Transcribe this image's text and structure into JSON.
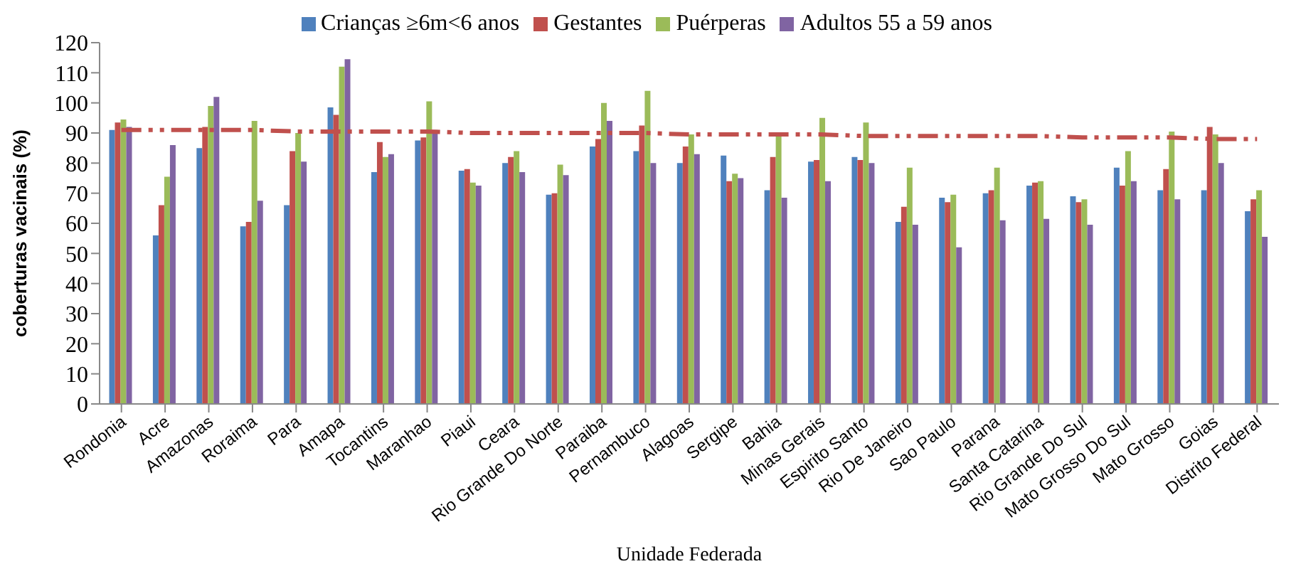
{
  "chart_data": {
    "type": "bar",
    "xlabel": "Unidade Federada",
    "ylabel": "coberturas vacinais  (%)",
    "categories": [
      "Rondonia",
      "Acre",
      "Amazonas",
      "Roraima",
      "Para",
      "Amapa",
      "Tocantins",
      "Maranhao",
      "Piaui",
      "Ceara",
      "Rio Grande Do Norte",
      "Paraiba",
      "Pernambuco",
      "Alagoas",
      "Sergipe",
      "Bahia",
      "Minas Gerais",
      "Espirito Santo",
      "Rio De Janeiro",
      "Sao Paulo",
      "Parana",
      "Santa Catarina",
      "Rio Grande Do Sul",
      "Mato Grosso Do Sul",
      "Mato Grosso",
      "Goias",
      "Distrito Federal"
    ],
    "series": [
      {
        "name": "Crianças ≥6m<6 anos",
        "color": "#4f81bd",
        "values": [
          91,
          56,
          85,
          59,
          66,
          98.5,
          77,
          87.5,
          77.5,
          80,
          69.5,
          85.5,
          84,
          80,
          82.5,
          71,
          80.5,
          82,
          60.5,
          68.5,
          70,
          72.5,
          69,
          78.5,
          71,
          71,
          64
        ]
      },
      {
        "name": "Gestantes",
        "color": "#c0504d",
        "values": [
          93.5,
          66,
          92,
          60.5,
          84,
          96,
          87,
          88.5,
          78,
          82,
          70,
          88,
          92.5,
          85.5,
          74,
          82,
          81,
          81,
          65.5,
          67,
          71,
          73.5,
          67,
          72.5,
          78,
          92,
          68
        ]
      },
      {
        "name": "Puérperas",
        "color": "#9bbb59",
        "values": [
          94.5,
          75.5,
          99,
          94,
          90,
          112,
          82,
          100.5,
          73.5,
          84,
          79.5,
          100,
          104,
          89.5,
          76.5,
          89,
          95,
          93.5,
          78.5,
          69.5,
          78.5,
          74,
          68,
          84,
          90.5,
          89.5,
          71
        ]
      },
      {
        "name": "Adultos  55 a 59 anos",
        "color": "#8064a2",
        "values": [
          92,
          86,
          102,
          67.5,
          80.5,
          114.5,
          83,
          91,
          72.5,
          77,
          76,
          94,
          80,
          83,
          75,
          68.5,
          74,
          80,
          59.5,
          52,
          61,
          61.5,
          59.5,
          74,
          68,
          80,
          55.5
        ]
      },
      {
        "type": "line",
        "color": "#c0504d",
        "line_style": "dashed",
        "values": [
          91,
          91,
          91,
          91,
          90.5,
          90.5,
          90.5,
          90.5,
          90,
          90,
          90,
          90,
          90,
          89.5,
          89.5,
          89.5,
          89.5,
          89,
          89,
          89,
          89,
          89,
          88.5,
          88.5,
          88.5,
          88,
          88
        ]
      }
    ],
    "ylim": [
      0,
      120
    ],
    "yticks": [
      0,
      10,
      20,
      30,
      40,
      50,
      60,
      70,
      80,
      90,
      100,
      110,
      120
    ],
    "legend": "top"
  }
}
